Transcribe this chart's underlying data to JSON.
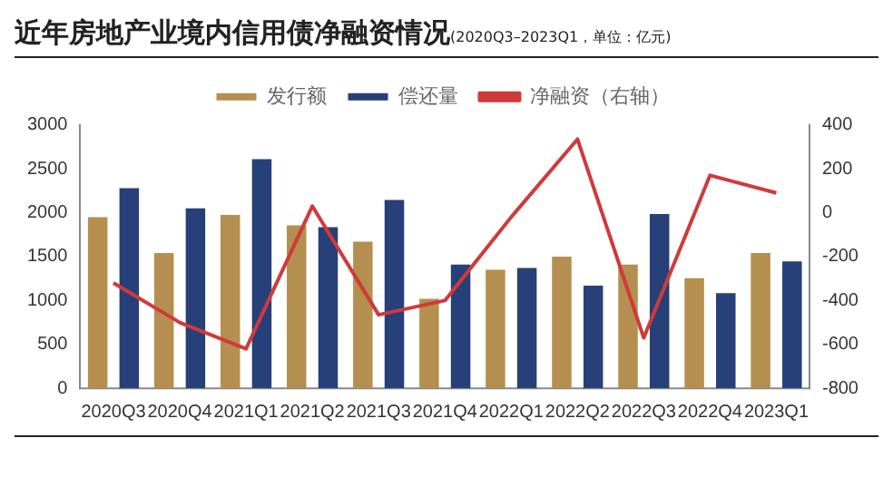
{
  "chart_data": {
    "type": "bar",
    "title": "近年房地产业境内信用债净融资情况",
    "subtitle": "(2020Q3–2023Q1，单位：亿元)",
    "categories": [
      "2020Q3",
      "2020Q4",
      "2021Q1",
      "2021Q2",
      "2021Q3",
      "2021Q4",
      "2022Q1",
      "2022Q2",
      "2022Q3",
      "2022Q4",
      "2023Q1"
    ],
    "series": [
      {
        "name": "发行额",
        "color": "#b58f4f",
        "values": [
          1950,
          1540,
          1975,
          1855,
          1670,
          1020,
          1350,
          1500,
          1410,
          1255,
          1540
        ]
      },
      {
        "name": "偿还量",
        "color": "#27407a",
        "values": [
          2280,
          2050,
          2610,
          1835,
          2145,
          1410,
          1370,
          1170,
          1985,
          1085,
          1445
        ]
      },
      {
        "name": "净融资（右轴）",
        "type": "line",
        "axis": "y2",
        "color": "#d03a3a",
        "values": [
          -320,
          -500,
          -620,
          30,
          -465,
          -400,
          -20,
          335,
          -570,
          170,
          90
        ]
      }
    ],
    "ylim": [
      0,
      3000
    ],
    "yticks": [
      0,
      500,
      1000,
      1500,
      2000,
      2500,
      3000
    ],
    "y2lim": [
      -800,
      400
    ],
    "y2ticks": [
      -800,
      -600,
      -400,
      -200,
      0,
      200,
      400
    ],
    "grid": false,
    "legend": "top",
    "marker": "none",
    "line_style": "solid"
  }
}
